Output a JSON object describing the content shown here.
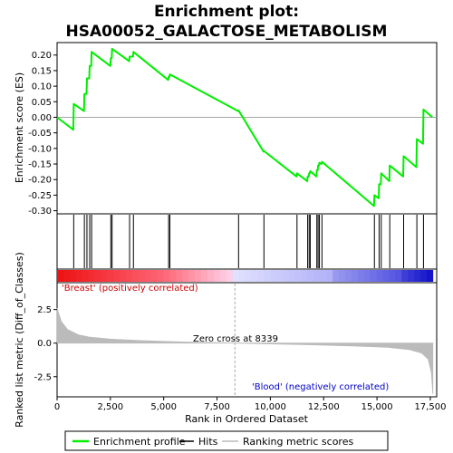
{
  "chart_data": {
    "type": "line",
    "title_line1": "Enrichment plot:",
    "title_line2": "HSA00052_GALACTOSE_METABOLISM",
    "xlabel": "Rank in Ordered Dataset",
    "ylabel_top": "Enrichment score (ES)",
    "ylabel_bottom": "Ranked list metric (Diff_of_Classes)",
    "xlim": [
      0,
      17800
    ],
    "x_ticks": [
      0,
      2500,
      5000,
      7500,
      10000,
      12500,
      15000,
      17500
    ],
    "x_tick_labels": [
      "0",
      "2,500",
      "5,000",
      "7,500",
      "10,000",
      "12,500",
      "15,000",
      "17,500"
    ],
    "es_ylim": [
      -0.31,
      0.24
    ],
    "es_ticks": [
      0.2,
      0.15,
      0.1,
      0.05,
      0.0,
      -0.05,
      -0.1,
      -0.15,
      -0.2,
      -0.25,
      -0.3
    ],
    "es_tick_labels": [
      "0.20",
      "0.15",
      "0.10",
      "0.05",
      "0.00",
      "-0.05",
      "-0.10",
      "-0.15",
      "-0.20",
      "-0.25",
      "-0.30"
    ],
    "metric_ylim": [
      -4.0,
      4.5
    ],
    "metric_ticks": [
      2.5,
      0.0,
      -2.5
    ],
    "metric_tick_labels": [
      "2.5",
      "0.0",
      "-2.5"
    ],
    "hits": [
      780,
      1280,
      1400,
      1530,
      1620,
      2520,
      2580,
      3400,
      3580,
      5230,
      5290,
      8510,
      9700,
      11250,
      11750,
      11820,
      11870,
      12180,
      12240,
      12300,
      12420,
      14880,
      15100,
      15200,
      15600,
      16250,
      16870,
      17180
    ],
    "es_points": [
      [
        0,
        0.0
      ],
      [
        760,
        -0.04
      ],
      [
        780,
        0.043
      ],
      [
        1260,
        0.02
      ],
      [
        1280,
        0.075
      ],
      [
        1380,
        0.075
      ],
      [
        1400,
        0.125
      ],
      [
        1510,
        0.125
      ],
      [
        1530,
        0.165
      ],
      [
        1600,
        0.165
      ],
      [
        1620,
        0.21
      ],
      [
        2500,
        0.165
      ],
      [
        2520,
        0.19
      ],
      [
        2560,
        0.19
      ],
      [
        2580,
        0.22
      ],
      [
        3380,
        0.18
      ],
      [
        3400,
        0.195
      ],
      [
        3560,
        0.195
      ],
      [
        3580,
        0.21
      ],
      [
        5210,
        0.12
      ],
      [
        5230,
        0.13
      ],
      [
        5270,
        0.13
      ],
      [
        5290,
        0.138
      ],
      [
        8490,
        0.02
      ],
      [
        8510,
        0.022
      ],
      [
        9680,
        -0.11
      ],
      [
        9700,
        -0.108
      ],
      [
        11230,
        -0.19
      ],
      [
        11250,
        -0.18
      ],
      [
        11730,
        -0.205
      ],
      [
        11750,
        -0.19
      ],
      [
        11800,
        -0.19
      ],
      [
        11820,
        -0.18
      ],
      [
        11850,
        -0.18
      ],
      [
        11870,
        -0.173
      ],
      [
        12160,
        -0.19
      ],
      [
        12180,
        -0.17
      ],
      [
        12220,
        -0.17
      ],
      [
        12240,
        -0.155
      ],
      [
        12280,
        -0.155
      ],
      [
        12300,
        -0.146
      ],
      [
        12400,
        -0.15
      ],
      [
        12420,
        -0.143
      ],
      [
        14860,
        -0.285
      ],
      [
        14880,
        -0.25
      ],
      [
        15080,
        -0.26
      ],
      [
        15100,
        -0.215
      ],
      [
        15180,
        -0.215
      ],
      [
        15200,
        -0.18
      ],
      [
        15580,
        -0.205
      ],
      [
        15600,
        -0.155
      ],
      [
        16230,
        -0.19
      ],
      [
        16250,
        -0.125
      ],
      [
        16850,
        -0.16
      ],
      [
        16870,
        -0.07
      ],
      [
        17160,
        -0.085
      ],
      [
        17180,
        0.025
      ],
      [
        17600,
        0.0
      ]
    ],
    "metric_points": [
      [
        0,
        2.6
      ],
      [
        200,
        1.6
      ],
      [
        500,
        1.0
      ],
      [
        1000,
        0.62
      ],
      [
        1500,
        0.45
      ],
      [
        2500,
        0.3
      ],
      [
        4000,
        0.18
      ],
      [
        6000,
        0.08
      ],
      [
        8339,
        0.0
      ],
      [
        10000,
        -0.06
      ],
      [
        12000,
        -0.13
      ],
      [
        14000,
        -0.22
      ],
      [
        15500,
        -0.32
      ],
      [
        16500,
        -0.48
      ],
      [
        17100,
        -0.75
      ],
      [
        17400,
        -1.2
      ],
      [
        17550,
        -2.2
      ],
      [
        17620,
        -3.8
      ]
    ],
    "zero_cross_rank": 8339,
    "zero_cross_label": "Zero cross at 8339",
    "pos_label": "'Breast' (positively correlated)",
    "neg_label": "'Blood' (negatively correlated)",
    "colors": {
      "es_line": "#00ee00",
      "hit_line": "#000000",
      "metric_fill": "#bbbbbb",
      "zero_line": "#aaaaaa",
      "pos_color": "#ff0000",
      "neg_color": "#0000ff"
    },
    "legend": [
      {
        "label": "Enrichment profile",
        "kind": "line",
        "color": "#00ee00"
      },
      {
        "label": "Hits",
        "kind": "line",
        "color": "#000000"
      },
      {
        "label": "Ranking metric scores",
        "kind": "line",
        "color": "#bbbbbb"
      }
    ]
  }
}
